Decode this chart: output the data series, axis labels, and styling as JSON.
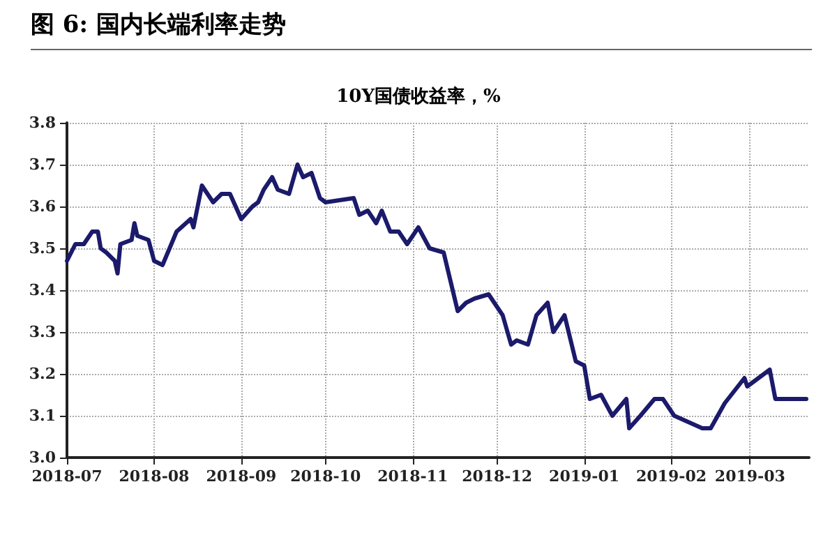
{
  "chart_data": {
    "type": "line",
    "title": "图 6:  国内长端利率走势",
    "subtitle": "10Y国债收益率，%",
    "x": [
      "2018-07-01",
      "2018-07-04",
      "2018-07-07",
      "2018-07-10",
      "2018-07-12",
      "2018-07-13",
      "2018-07-15",
      "2018-07-18",
      "2018-07-19",
      "2018-07-20",
      "2018-07-24",
      "2018-07-25",
      "2018-07-26",
      "2018-07-30",
      "2018-08-01",
      "2018-08-04",
      "2018-08-09",
      "2018-08-14",
      "2018-08-15",
      "2018-08-18",
      "2018-08-22",
      "2018-08-25",
      "2018-08-28",
      "2018-09-01",
      "2018-09-05",
      "2018-09-07",
      "2018-09-09",
      "2018-09-12",
      "2018-09-14",
      "2018-09-18",
      "2018-09-21",
      "2018-09-23",
      "2018-09-26",
      "2018-09-29",
      "2018-10-01",
      "2018-10-11",
      "2018-10-13",
      "2018-10-16",
      "2018-10-19",
      "2018-10-21",
      "2018-10-24",
      "2018-10-27",
      "2018-10-30",
      "2018-11-03",
      "2018-11-07",
      "2018-11-12",
      "2018-11-17",
      "2018-11-20",
      "2018-11-23",
      "2018-11-28",
      "2018-12-01",
      "2018-12-03",
      "2018-12-06",
      "2018-12-08",
      "2018-12-12",
      "2018-12-15",
      "2018-12-19",
      "2018-12-21",
      "2018-12-25",
      "2018-12-29",
      "2019-01-01",
      "2019-01-03",
      "2019-01-07",
      "2019-01-11",
      "2019-01-16",
      "2019-01-17",
      "2019-01-21",
      "2019-01-26",
      "2019-01-29",
      "2019-02-02",
      "2019-02-12",
      "2019-02-15",
      "2019-02-20",
      "2019-02-27",
      "2019-02-28",
      "2019-03-08",
      "2019-03-10",
      "2019-03-17",
      "2019-03-21"
    ],
    "series": [
      {
        "color": "#1b1a6b",
        "values": [
          3.47,
          3.51,
          3.51,
          3.54,
          3.54,
          3.5,
          3.49,
          3.47,
          3.44,
          3.51,
          3.52,
          3.56,
          3.53,
          3.52,
          3.47,
          3.46,
          3.54,
          3.57,
          3.55,
          3.65,
          3.61,
          3.63,
          3.63,
          3.57,
          3.6,
          3.61,
          3.64,
          3.67,
          3.64,
          3.63,
          3.7,
          3.67,
          3.68,
          3.62,
          3.61,
          3.62,
          3.58,
          3.59,
          3.56,
          3.59,
          3.54,
          3.54,
          3.51,
          3.55,
          3.5,
          3.49,
          3.35,
          3.37,
          3.38,
          3.39,
          3.36,
          3.34,
          3.27,
          3.28,
          3.27,
          3.34,
          3.37,
          3.3,
          3.34,
          3.23,
          3.22,
          3.14,
          3.15,
          3.1,
          3.14,
          3.07,
          3.1,
          3.14,
          3.14,
          3.1,
          3.07,
          3.07,
          3.13,
          3.19,
          3.17,
          3.21,
          3.14,
          3.14,
          3.14
        ]
      }
    ],
    "xlim": [
      "2018-07-01",
      "2019-03-22"
    ],
    "xticks": [
      "2018-07",
      "2018-08",
      "2018-09",
      "2018-10",
      "2018-11",
      "2018-12",
      "2019-01",
      "2019-02",
      "2019-03"
    ],
    "ylim": [
      3.0,
      3.8
    ],
    "yticks": [
      {
        "value": 3.0,
        "label": "3.0"
      },
      3.1,
      3.2,
      3.3,
      3.4,
      3.5,
      3.6,
      3.7,
      3.8
    ],
    "grid": true,
    "marker": "none",
    "line_style": "solid"
  }
}
